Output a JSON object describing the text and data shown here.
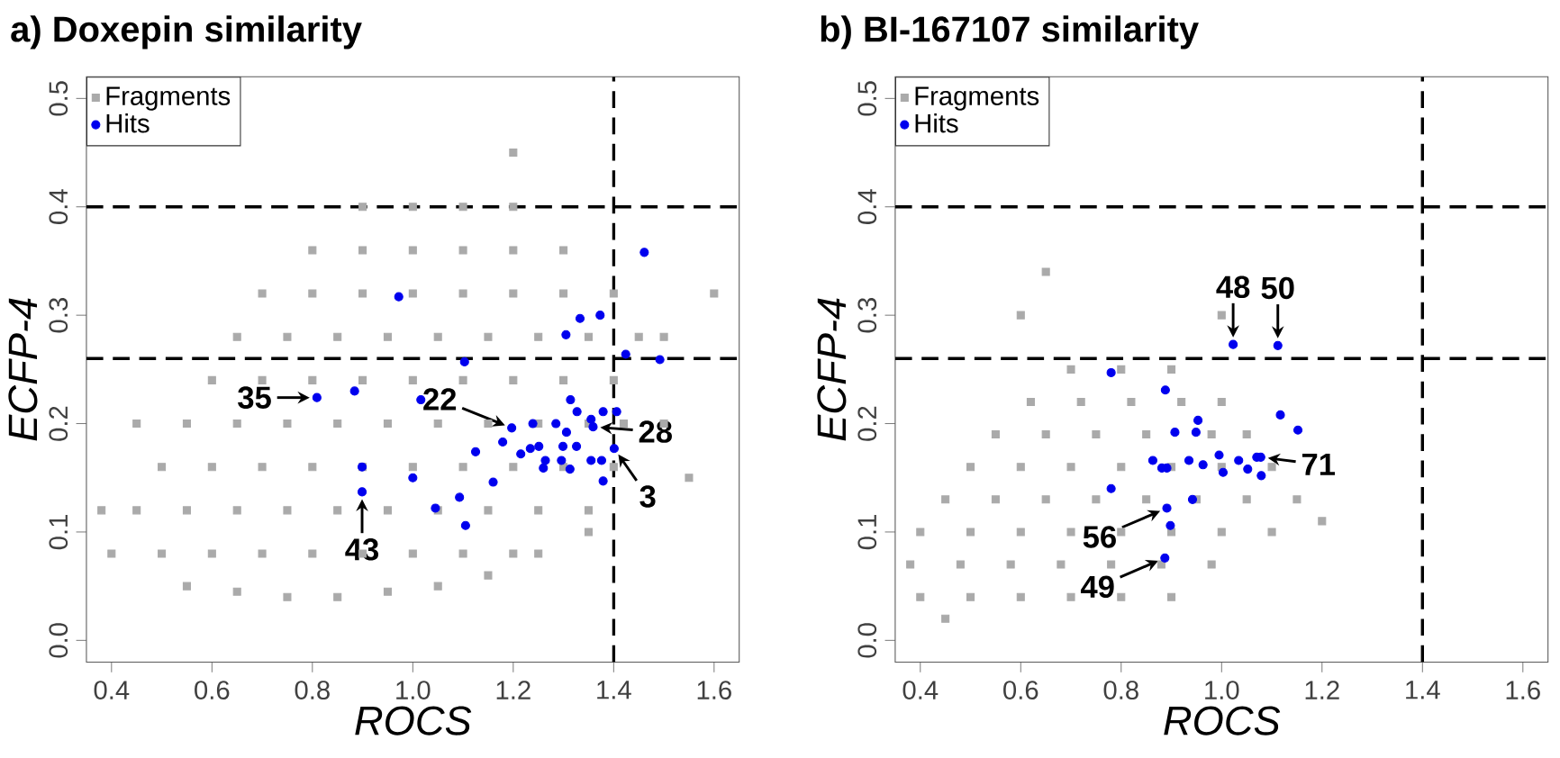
{
  "chart_data": [
    {
      "type": "scatter",
      "title": "a) Doxepin similarity",
      "xlabel": "ROCS",
      "ylabel": "ECFP-4",
      "xlim": [
        0.35,
        1.65
      ],
      "ylim": [
        -0.02,
        0.52
      ],
      "xticks": [
        {
          "value": 0.4,
          "label": "0.4"
        },
        {
          "value": 0.6,
          "label": "0.6"
        },
        {
          "value": 0.8,
          "label": "0.8"
        },
        {
          "value": 1.0,
          "label": "1.0"
        },
        {
          "value": 1.2,
          "label": "1.2"
        },
        {
          "value": 1.4,
          "label": "1.4"
        },
        {
          "value": 1.6,
          "label": "1.6"
        }
      ],
      "yticks": [
        {
          "value": 0,
          "label": "0.0"
        },
        {
          "value": 0.1,
          "label": "0.1"
        },
        {
          "value": 0.2,
          "label": "0.2"
        },
        {
          "value": 0.3,
          "label": "0.3"
        },
        {
          "value": 0.4,
          "label": "0.4"
        },
        {
          "value": 0.5,
          "label": "0.5"
        }
      ],
      "legend": "top left",
      "grid": false,
      "ref_lines": [
        {
          "axis": "y",
          "value": 0.4,
          "line_style": "dashed"
        },
        {
          "axis": "y",
          "value": 0.26,
          "line_style": "dashed"
        },
        {
          "axis": "x",
          "value": 1.4,
          "line_style": "dashed"
        }
      ],
      "annotations": [
        {
          "text": "35",
          "x": 0.809,
          "y": 0.224
        },
        {
          "text": "22",
          "x": 1.197,
          "y": 0.196
        },
        {
          "text": "28",
          "x": 1.359,
          "y": 0.197
        },
        {
          "text": "3",
          "x": 1.401,
          "y": 0.177
        },
        {
          "text": "43",
          "x": 0.899,
          "y": 0.137
        }
      ],
      "series": [
        {
          "name": "Fragments",
          "color": "#aaaaaa",
          "marker": "square",
          "x": [
            0.55,
            0.65,
            0.75,
            0.85,
            0.95,
            1.05,
            1.15,
            1.25,
            1.35,
            0.5,
            0.6,
            0.7,
            0.8,
            0.9,
            1.0,
            1.1,
            1.2,
            0.45,
            0.55,
            0.65,
            0.75,
            0.85,
            0.95,
            1.05,
            1.15,
            1.25,
            1.35,
            0.5,
            0.6,
            0.7,
            0.8,
            0.9,
            1.0,
            1.1,
            1.2,
            1.3,
            1.4,
            0.55,
            0.65,
            0.75,
            0.85,
            0.95,
            1.05,
            1.15,
            1.25,
            1.35,
            1.42,
            0.6,
            0.7,
            0.8,
            0.9,
            1.0,
            1.1,
            1.2,
            1.3,
            1.4,
            0.65,
            0.75,
            0.85,
            0.95,
            1.05,
            1.15,
            1.25,
            1.35,
            1.45,
            0.7,
            0.8,
            0.9,
            1.0,
            1.1,
            1.2,
            1.3,
            1.4,
            0.8,
            0.9,
            1.0,
            1.1,
            1.2,
            1.3,
            0.9,
            1.0,
            1.1,
            1.2,
            0.38,
            0.4,
            1.5,
            1.55,
            1.6,
            1.2,
            1.5,
            0.45
          ],
          "values": [
            0.05,
            0.045,
            0.04,
            0.04,
            0.045,
            0.05,
            0.06,
            0.08,
            0.1,
            0.08,
            0.08,
            0.08,
            0.08,
            0.08,
            0.08,
            0.08,
            0.08,
            0.12,
            0.12,
            0.12,
            0.12,
            0.12,
            0.12,
            0.12,
            0.12,
            0.12,
            0.12,
            0.16,
            0.16,
            0.16,
            0.16,
            0.16,
            0.16,
            0.16,
            0.16,
            0.16,
            0.16,
            0.2,
            0.2,
            0.2,
            0.2,
            0.2,
            0.2,
            0.2,
            0.2,
            0.2,
            0.2,
            0.24,
            0.24,
            0.24,
            0.24,
            0.24,
            0.24,
            0.24,
            0.24,
            0.24,
            0.28,
            0.28,
            0.28,
            0.28,
            0.28,
            0.28,
            0.28,
            0.28,
            0.28,
            0.32,
            0.32,
            0.32,
            0.32,
            0.32,
            0.32,
            0.32,
            0.32,
            0.36,
            0.36,
            0.36,
            0.36,
            0.36,
            0.36,
            0.4,
            0.4,
            0.4,
            0.4,
            0.12,
            0.08,
            0.2,
            0.15,
            0.32,
            0.45,
            0.28,
            0.2
          ]
        },
        {
          "name": "Hits",
          "color": "#0000ee",
          "marker": "circle",
          "x": [
            1.461,
            0.972,
            1.333,
            1.373,
            1.305,
            1.424,
            1.492,
            1.103,
            0.809,
            0.884,
            1.016,
            1.314,
            1.327,
            1.355,
            1.379,
            1.406,
            1.359,
            1.197,
            1.239,
            1.285,
            1.306,
            1.179,
            1.125,
            1.215,
            1.234,
            1.251,
            1.299,
            1.326,
            1.401,
            1.264,
            1.26,
            1.296,
            1.313,
            1.355,
            1.376,
            1.379,
            0.899,
            0.899,
            1.0,
            1.16,
            1.045,
            1.093,
            1.105
          ],
          "values": [
            0.358,
            0.317,
            0.297,
            0.3,
            0.282,
            0.264,
            0.259,
            0.257,
            0.224,
            0.23,
            0.222,
            0.222,
            0.211,
            0.204,
            0.211,
            0.211,
            0.197,
            0.196,
            0.2,
            0.2,
            0.192,
            0.183,
            0.174,
            0.172,
            0.177,
            0.179,
            0.179,
            0.179,
            0.177,
            0.166,
            0.159,
            0.166,
            0.158,
            0.166,
            0.166,
            0.147,
            0.16,
            0.137,
            0.15,
            0.146,
            0.122,
            0.132,
            0.106
          ]
        }
      ]
    },
    {
      "type": "scatter",
      "title": "b) BI-167107 similarity",
      "xlabel": "ROCS",
      "ylabel": "ECFP-4",
      "xlim": [
        0.35,
        1.65
      ],
      "ylim": [
        -0.02,
        0.52
      ],
      "xticks": [
        {
          "value": 0.4,
          "label": "0.4"
        },
        {
          "value": 0.6,
          "label": "0.6"
        },
        {
          "value": 0.8,
          "label": "0.8"
        },
        {
          "value": 1.0,
          "label": "1.0"
        },
        {
          "value": 1.2,
          "label": "1.2"
        },
        {
          "value": 1.4,
          "label": "1.4"
        },
        {
          "value": 1.6,
          "label": "1.6"
        }
      ],
      "yticks": [
        {
          "value": 0,
          "label": "0.0"
        },
        {
          "value": 0.1,
          "label": "0.1"
        },
        {
          "value": 0.2,
          "label": "0.2"
        },
        {
          "value": 0.3,
          "label": "0.3"
        },
        {
          "value": 0.4,
          "label": "0.4"
        },
        {
          "value": 0.5,
          "label": "0.5"
        }
      ],
      "legend": "top left",
      "grid": false,
      "ref_lines": [
        {
          "axis": "y",
          "value": 0.4,
          "line_style": "dashed"
        },
        {
          "axis": "y",
          "value": 0.26,
          "line_style": "dashed"
        },
        {
          "axis": "x",
          "value": 1.4,
          "line_style": "dashed"
        }
      ],
      "annotations": [
        {
          "text": "48",
          "x": 1.023,
          "y": 0.273
        },
        {
          "text": "50",
          "x": 1.112,
          "y": 0.272
        },
        {
          "text": "71",
          "x": 1.078,
          "y": 0.169
        },
        {
          "text": "56",
          "x": 0.891,
          "y": 0.122
        },
        {
          "text": "49",
          "x": 0.887,
          "y": 0.076
        }
      ],
      "series": [
        {
          "name": "Fragments",
          "color": "#aaaaaa",
          "marker": "square",
          "x": [
            0.4,
            0.5,
            0.6,
            0.7,
            0.8,
            0.9,
            0.38,
            0.48,
            0.58,
            0.68,
            0.78,
            0.88,
            0.98,
            0.4,
            0.5,
            0.6,
            0.7,
            0.8,
            0.9,
            1.0,
            1.1,
            0.45,
            0.55,
            0.65,
            0.75,
            0.85,
            0.95,
            1.05,
            1.15,
            0.5,
            0.6,
            0.7,
            0.8,
            0.9,
            1.0,
            1.1,
            0.55,
            0.65,
            0.75,
            0.85,
            0.98,
            1.05,
            0.62,
            0.72,
            0.82,
            0.92,
            1.0,
            0.7,
            0.8,
            0.9,
            0.65,
            0.6,
            1.2,
            0.45,
            1.0
          ],
          "values": [
            0.04,
            0.04,
            0.04,
            0.04,
            0.04,
            0.04,
            0.07,
            0.07,
            0.07,
            0.07,
            0.07,
            0.07,
            0.07,
            0.1,
            0.1,
            0.1,
            0.1,
            0.1,
            0.1,
            0.1,
            0.1,
            0.13,
            0.13,
            0.13,
            0.13,
            0.13,
            0.13,
            0.13,
            0.13,
            0.16,
            0.16,
            0.16,
            0.16,
            0.16,
            0.16,
            0.16,
            0.19,
            0.19,
            0.19,
            0.19,
            0.19,
            0.19,
            0.22,
            0.22,
            0.22,
            0.22,
            0.22,
            0.25,
            0.25,
            0.25,
            0.34,
            0.3,
            0.11,
            0.02,
            0.3
          ]
        },
        {
          "name": "Hits",
          "color": "#0000ee",
          "marker": "circle",
          "x": [
            1.023,
            1.112,
            0.78,
            0.888,
            1.117,
            1.152,
            0.953,
            0.907,
            0.949,
            0.863,
            0.881,
            0.891,
            0.935,
            0.963,
            0.995,
            1.003,
            1.034,
            1.052,
            1.07,
            1.078,
            1.079,
            0.78,
            0.942,
            0.891,
            0.898,
            0.887
          ],
          "values": [
            0.273,
            0.272,
            0.247,
            0.231,
            0.208,
            0.194,
            0.203,
            0.192,
            0.192,
            0.166,
            0.159,
            0.159,
            0.166,
            0.162,
            0.171,
            0.155,
            0.166,
            0.158,
            0.169,
            0.169,
            0.152,
            0.14,
            0.13,
            0.122,
            0.106,
            0.076
          ]
        }
      ]
    }
  ]
}
